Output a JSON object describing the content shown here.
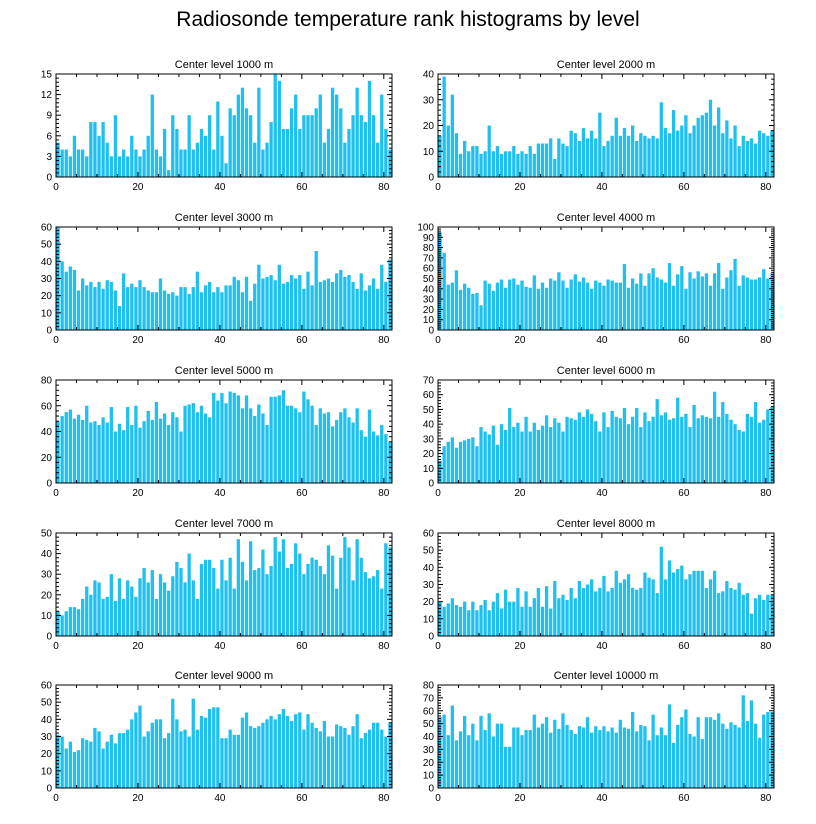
{
  "title": "Radiosonde temperature rank histograms by level",
  "colors": {
    "bar": "#1ec0ef",
    "axis": "#000000",
    "background": "#ffffff"
  },
  "chart_data": [
    {
      "type": "bar",
      "title": "Center level 1000 m",
      "xlabel": "",
      "ylabel": "",
      "xlim": [
        0,
        82
      ],
      "xticks": [
        0,
        20,
        40,
        60,
        80
      ],
      "ylim": [
        0,
        15
      ],
      "yticks": [
        0,
        3,
        6,
        9,
        12,
        15
      ],
      "values": [
        5,
        4,
        4,
        3,
        6,
        4,
        4,
        3,
        8,
        8,
        6,
        8,
        5,
        3,
        9,
        3,
        4,
        3,
        6,
        4,
        3,
        4,
        6,
        12,
        4,
        3,
        7,
        1,
        9,
        7,
        4,
        4,
        9,
        4,
        5,
        7,
        6,
        9,
        4,
        11,
        6,
        2,
        10,
        9,
        12,
        13,
        10,
        9,
        5,
        13,
        4,
        5,
        8,
        15,
        14,
        7,
        7,
        10,
        12,
        7,
        9,
        9,
        9,
        10,
        12,
        5,
        7,
        13,
        12,
        10,
        5,
        7,
        9,
        13,
        9,
        8,
        14,
        9,
        5,
        12,
        7,
        4
      ]
    },
    {
      "type": "bar",
      "title": "Center level 2000 m",
      "xlabel": "",
      "ylabel": "",
      "xlim": [
        0,
        82
      ],
      "xticks": [
        0,
        20,
        40,
        60,
        80
      ],
      "ylim": [
        0,
        40
      ],
      "yticks": [
        0,
        10,
        20,
        30,
        40
      ],
      "values": [
        16,
        39,
        20,
        32,
        17,
        9,
        14,
        10,
        12,
        12,
        9,
        10,
        20,
        10,
        12,
        9,
        10,
        10,
        12,
        9,
        10,
        9,
        12,
        9,
        13,
        13,
        13,
        15,
        7,
        15,
        13,
        12,
        18,
        17,
        14,
        19,
        15,
        18,
        15,
        25,
        12,
        14,
        16,
        23,
        16,
        19,
        16,
        20,
        14,
        17,
        16,
        15,
        16,
        15,
        29,
        19,
        17,
        26,
        18,
        20,
        24,
        17,
        20,
        23,
        24,
        25,
        30,
        20,
        27,
        17,
        22,
        15,
        20,
        12,
        16,
        14,
        15,
        13,
        18,
        17,
        16,
        18
      ]
    },
    {
      "type": "bar",
      "title": "Center level 3000 m",
      "xlabel": "",
      "ylabel": "",
      "xlim": [
        0,
        82
      ],
      "xticks": [
        0,
        20,
        40,
        60,
        80
      ],
      "ylim": [
        0,
        60
      ],
      "yticks": [
        0,
        10,
        20,
        30,
        40,
        50,
        60
      ],
      "values": [
        60,
        40,
        34,
        37,
        35,
        23,
        30,
        26,
        28,
        25,
        28,
        24,
        29,
        28,
        23,
        14,
        33,
        25,
        27,
        25,
        29,
        25,
        23,
        22,
        22,
        30,
        23,
        21,
        22,
        20,
        25,
        25,
        21,
        25,
        34,
        22,
        26,
        28,
        22,
        25,
        22,
        26,
        26,
        31,
        29,
        22,
        31,
        17,
        27,
        38,
        30,
        31,
        32,
        29,
        38,
        27,
        28,
        32,
        30,
        32,
        24,
        34,
        26,
        46,
        28,
        29,
        30,
        28,
        33,
        35,
        31,
        32,
        28,
        24,
        33,
        23,
        26,
        30,
        24,
        38,
        28,
        41
      ]
    },
    {
      "type": "bar",
      "title": "Center level 4000 m",
      "xlabel": "",
      "ylabel": "",
      "xlim": [
        0,
        82
      ],
      "xticks": [
        0,
        20,
        40,
        60,
        80
      ],
      "ylim": [
        0,
        100
      ],
      "yticks": [
        0,
        10,
        20,
        30,
        40,
        50,
        60,
        70,
        80,
        90,
        100
      ],
      "values": [
        95,
        75,
        44,
        46,
        58,
        39,
        45,
        41,
        35,
        36,
        24,
        48,
        45,
        38,
        46,
        49,
        41,
        49,
        50,
        44,
        48,
        42,
        41,
        53,
        40,
        46,
        41,
        50,
        48,
        56,
        48,
        41,
        49,
        54,
        47,
        51,
        46,
        40,
        48,
        46,
        43,
        49,
        48,
        46,
        46,
        64,
        41,
        50,
        45,
        55,
        43,
        55,
        60,
        51,
        49,
        46,
        65,
        43,
        54,
        62,
        40,
        56,
        50,
        57,
        52,
        55,
        43,
        55,
        65,
        40,
        51,
        58,
        69,
        43,
        53,
        51,
        49,
        49,
        51,
        59,
        50,
        55
      ]
    },
    {
      "type": "bar",
      "title": "Center level 5000 m",
      "xlabel": "",
      "ylabel": "",
      "xlim": [
        0,
        82
      ],
      "xticks": [
        0,
        20,
        40,
        60,
        80
      ],
      "ylim": [
        0,
        80
      ],
      "yticks": [
        0,
        20,
        40,
        60,
        80
      ],
      "values": [
        48,
        52,
        55,
        57,
        50,
        53,
        49,
        60,
        47,
        48,
        45,
        51,
        47,
        59,
        40,
        46,
        41,
        59,
        45,
        60,
        43,
        48,
        56,
        49,
        63,
        50,
        54,
        45,
        55,
        51,
        40,
        60,
        61,
        62,
        55,
        60,
        54,
        51,
        70,
        64,
        70,
        62,
        71,
        70,
        68,
        58,
        68,
        58,
        52,
        61,
        54,
        45,
        67,
        67,
        68,
        72,
        60,
        60,
        58,
        55,
        71,
        65,
        60,
        45,
        58,
        54,
        55,
        44,
        49,
        55,
        58,
        51,
        47,
        58,
        41,
        36,
        57,
        40,
        37,
        45,
        38,
        32
      ]
    },
    {
      "type": "bar",
      "title": "Center level 6000 m",
      "xlabel": "",
      "ylabel": "",
      "xlim": [
        0,
        82
      ],
      "xticks": [
        0,
        20,
        40,
        60,
        80
      ],
      "ylim": [
        0,
        70
      ],
      "yticks": [
        0,
        10,
        20,
        30,
        40,
        50,
        60,
        70
      ],
      "values": [
        15,
        25,
        28,
        31,
        24,
        28,
        29,
        30,
        31,
        25,
        38,
        35,
        33,
        39,
        26,
        40,
        36,
        51,
        38,
        41,
        35,
        45,
        35,
        41,
        36,
        39,
        46,
        38,
        44,
        41,
        35,
        45,
        44,
        43,
        48,
        45,
        50,
        47,
        42,
        35,
        48,
        38,
        49,
        45,
        44,
        51,
        40,
        45,
        51,
        38,
        48,
        42,
        45,
        57,
        46,
        48,
        43,
        44,
        58,
        45,
        47,
        38,
        53,
        44,
        46,
        45,
        44,
        62,
        45,
        55,
        47,
        43,
        40,
        36,
        35,
        47,
        45,
        55,
        41,
        43,
        50,
        52
      ]
    },
    {
      "type": "bar",
      "title": "Center level 7000 m",
      "xlabel": "",
      "ylabel": "",
      "xlim": [
        0,
        82
      ],
      "xticks": [
        0,
        20,
        40,
        60,
        80
      ],
      "ylim": [
        0,
        50
      ],
      "yticks": [
        0,
        10,
        20,
        30,
        40,
        50
      ],
      "values": [
        12,
        10,
        12,
        14,
        14,
        13,
        18,
        24,
        20,
        27,
        26,
        18,
        19,
        30,
        17,
        28,
        18,
        27,
        24,
        19,
        28,
        33,
        26,
        32,
        18,
        30,
        26,
        22,
        29,
        36,
        33,
        26,
        40,
        27,
        18,
        35,
        37,
        37,
        33,
        23,
        37,
        27,
        38,
        23,
        47,
        36,
        27,
        46,
        32,
        33,
        42,
        30,
        34,
        48,
        41,
        47,
        33,
        35,
        45,
        40,
        30,
        35,
        38,
        37,
        34,
        30,
        44,
        39,
        23,
        38,
        48,
        43,
        27,
        47,
        38,
        31,
        28,
        29,
        32,
        23,
        45,
        43
      ]
    },
    {
      "type": "bar",
      "title": "Center level 8000 m",
      "xlabel": "",
      "ylabel": "",
      "xlim": [
        0,
        82
      ],
      "xticks": [
        0,
        20,
        40,
        60,
        80
      ],
      "ylim": [
        0,
        60
      ],
      "yticks": [
        0,
        10,
        20,
        30,
        40,
        50,
        60
      ],
      "values": [
        20,
        17,
        19,
        22,
        18,
        17,
        20,
        15,
        20,
        15,
        18,
        21,
        15,
        20,
        25,
        16,
        27,
        20,
        20,
        28,
        17,
        26,
        17,
        22,
        28,
        17,
        29,
        16,
        32,
        22,
        24,
        21,
        28,
        22,
        32,
        28,
        30,
        33,
        26,
        28,
        35,
        26,
        28,
        38,
        31,
        33,
        36,
        28,
        27,
        28,
        37,
        34,
        33,
        25,
        52,
        33,
        44,
        37,
        39,
        41,
        33,
        36,
        38,
        38,
        38,
        28,
        33,
        38,
        25,
        26,
        32,
        28,
        27,
        31,
        24,
        25,
        13,
        22,
        24,
        21,
        24,
        24
      ]
    },
    {
      "type": "bar",
      "title": "Center level 9000 m",
      "xlabel": "",
      "ylabel": "",
      "xlim": [
        0,
        82
      ],
      "xticks": [
        0,
        20,
        40,
        60,
        80
      ],
      "ylim": [
        0,
        60
      ],
      "yticks": [
        0,
        10,
        20,
        30,
        40,
        50,
        60
      ],
      "values": [
        31,
        30,
        23,
        27,
        21,
        22,
        29,
        28,
        27,
        35,
        33,
        23,
        27,
        31,
        26,
        32,
        32,
        34,
        40,
        44,
        48,
        30,
        33,
        38,
        40,
        40,
        29,
        32,
        52,
        40,
        33,
        34,
        30,
        52,
        34,
        42,
        41,
        46,
        47,
        47,
        29,
        29,
        34,
        31,
        31,
        41,
        44,
        36,
        35,
        36,
        38,
        40,
        42,
        40,
        43,
        46,
        42,
        39,
        43,
        44,
        34,
        43,
        38,
        35,
        33,
        39,
        30,
        30,
        37,
        36,
        35,
        31,
        36,
        43,
        29,
        32,
        34,
        38,
        38,
        34,
        30,
        38
      ]
    },
    {
      "type": "bar",
      "title": "Center level 10000 m",
      "xlabel": "",
      "ylabel": "",
      "xlim": [
        0,
        82
      ],
      "xticks": [
        0,
        20,
        40,
        60,
        80
      ],
      "ylim": [
        0,
        80
      ],
      "yticks": [
        0,
        10,
        20,
        30,
        40,
        50,
        60,
        70,
        80
      ],
      "values": [
        55,
        57,
        41,
        64,
        37,
        44,
        56,
        41,
        50,
        37,
        56,
        45,
        58,
        40,
        50,
        50,
        32,
        32,
        47,
        47,
        41,
        45,
        45,
        57,
        47,
        50,
        55,
        43,
        53,
        46,
        58,
        49,
        45,
        42,
        48,
        47,
        55,
        43,
        48,
        45,
        48,
        44,
        47,
        43,
        53,
        47,
        46,
        59,
        44,
        49,
        48,
        37,
        57,
        41,
        47,
        41,
        65,
        35,
        49,
        55,
        61,
        42,
        40,
        55,
        38,
        55,
        55,
        53,
        58,
        50,
        46,
        51,
        49,
        47,
        72,
        52,
        68,
        50,
        39,
        57,
        59,
        59
      ]
    }
  ]
}
